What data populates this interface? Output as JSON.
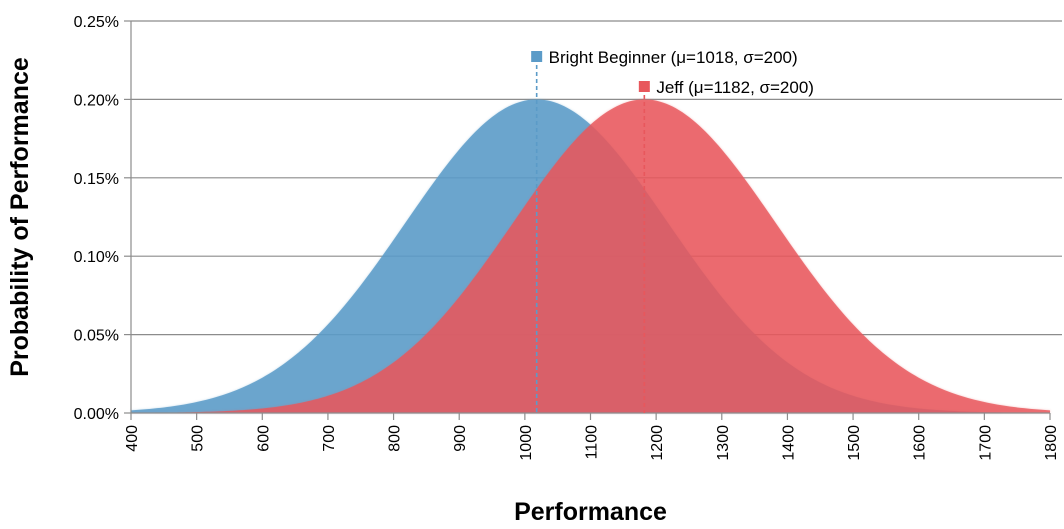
{
  "chart_data": {
    "type": "area",
    "title": "",
    "xlabel": "Performance",
    "ylabel": "Probability of Performance",
    "xlim": [
      400,
      1800
    ],
    "ylim": [
      0,
      0.25
    ],
    "x_ticks": [
      "400",
      "500",
      "600",
      "700",
      "800",
      "900",
      "1000",
      "1100",
      "1200",
      "1300",
      "1400",
      "1500",
      "1600",
      "1700",
      "1800"
    ],
    "y_ticks": [
      "0.00%",
      "0.05%",
      "0.10%",
      "0.15%",
      "0.20%",
      "0.25%"
    ],
    "grid": "horizontal",
    "series": [
      {
        "name": "Bright Beginner (μ=1018, σ=200)",
        "mean": 1018,
        "sd": 200,
        "peak_percent": 0.2,
        "color": "#5B9BC8",
        "alpha": 0.85
      },
      {
        "name": "Jeff (μ=1182, σ=200)",
        "mean": 1182,
        "sd": 200,
        "peak_percent": 0.2,
        "color": "#E8575C",
        "alpha": 0.82
      }
    ]
  }
}
